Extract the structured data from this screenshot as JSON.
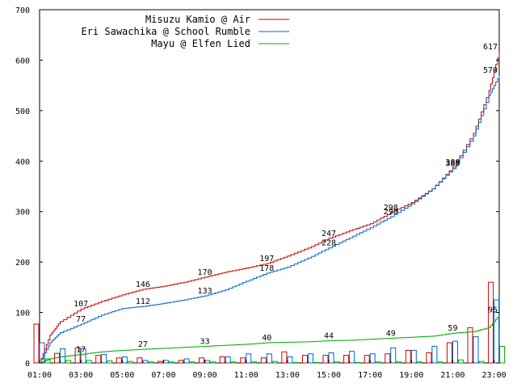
{
  "chart_data": {
    "type": "line",
    "title": "",
    "xlabel": "",
    "ylabel": "",
    "xlim": [
      1,
      23.25
    ],
    "ylim": [
      0,
      700
    ],
    "x_ticks": [
      "01:00",
      "03:00",
      "05:00",
      "07:00",
      "09:00",
      "11:00",
      "13:00",
      "15:00",
      "17:00",
      "19:00",
      "21:00",
      "23:00"
    ],
    "y_ticks": [
      0,
      100,
      200,
      300,
      400,
      500,
      600,
      700
    ],
    "grid": false,
    "legend_position": "top-right",
    "legend": [
      {
        "name": "Misuzu Kamio @ Air",
        "color": "#cc0000"
      },
      {
        "name": "Eri Sawachika @ School Rumble",
        "color": "#0066cc"
      },
      {
        "name": "Mayu @ Elfen Lied",
        "color": "#00aa00"
      }
    ],
    "series": [
      {
        "name": "Misuzu Kamio @ Air",
        "color": "#cc0000",
        "cumulative": [
          [
            1.0,
            0
          ],
          [
            1.5,
            55
          ],
          [
            2.0,
            82
          ],
          [
            3.0,
            107
          ],
          [
            4.0,
            122
          ],
          [
            5.0,
            135
          ],
          [
            6.0,
            146
          ],
          [
            7.0,
            152
          ],
          [
            8.0,
            160
          ],
          [
            9.0,
            170
          ],
          [
            10.0,
            180
          ],
          [
            11.0,
            188
          ],
          [
            12.0,
            197
          ],
          [
            13.0,
            212
          ],
          [
            14.0,
            228
          ],
          [
            15.0,
            247
          ],
          [
            16.0,
            262
          ],
          [
            17.0,
            276
          ],
          [
            18.0,
            298
          ],
          [
            19.0,
            318
          ],
          [
            20.0,
            345
          ],
          [
            21.0,
            388
          ],
          [
            22.0,
            455
          ],
          [
            22.75,
            540
          ],
          [
            23.25,
            617
          ]
        ],
        "hourly": [
          [
            1,
            77
          ],
          [
            2,
            19
          ],
          [
            3,
            30
          ],
          [
            4,
            15
          ],
          [
            5,
            10
          ],
          [
            6,
            10
          ],
          [
            7,
            3
          ],
          [
            8,
            5
          ],
          [
            9,
            10
          ],
          [
            10,
            12
          ],
          [
            11,
            10
          ],
          [
            12,
            10
          ],
          [
            13,
            22
          ],
          [
            14,
            15
          ],
          [
            15,
            15
          ],
          [
            16,
            15
          ],
          [
            17,
            15
          ],
          [
            18,
            18
          ],
          [
            19,
            25
          ],
          [
            20,
            20
          ],
          [
            21,
            40
          ],
          [
            22,
            70
          ],
          [
            23,
            160
          ]
        ]
      },
      {
        "name": "Eri Sawachika @ School Rumble",
        "color": "#0066cc",
        "cumulative": [
          [
            1.0,
            0
          ],
          [
            1.5,
            40
          ],
          [
            2.0,
            60
          ],
          [
            3.0,
            77
          ],
          [
            4.0,
            95
          ],
          [
            5.0,
            108
          ],
          [
            6.0,
            112
          ],
          [
            7.0,
            118
          ],
          [
            8.0,
            125
          ],
          [
            9.0,
            133
          ],
          [
            10.0,
            145
          ],
          [
            11.0,
            162
          ],
          [
            12.0,
            178
          ],
          [
            13.0,
            190
          ],
          [
            14.0,
            208
          ],
          [
            15.0,
            228
          ],
          [
            16.0,
            248
          ],
          [
            17.0,
            268
          ],
          [
            18.0,
            290
          ],
          [
            19.0,
            315
          ],
          [
            20.0,
            345
          ],
          [
            21.0,
            385
          ],
          [
            22.0,
            450
          ],
          [
            22.75,
            530
          ],
          [
            23.25,
            570
          ]
        ],
        "hourly": [
          [
            1,
            40
          ],
          [
            2,
            28
          ],
          [
            3,
            28
          ],
          [
            4,
            17
          ],
          [
            5,
            12
          ],
          [
            6,
            5
          ],
          [
            7,
            5
          ],
          [
            8,
            8
          ],
          [
            9,
            5
          ],
          [
            10,
            12
          ],
          [
            11,
            18
          ],
          [
            12,
            18
          ],
          [
            13,
            12
          ],
          [
            14,
            18
          ],
          [
            15,
            20
          ],
          [
            16,
            23
          ],
          [
            17,
            18
          ],
          [
            18,
            30
          ],
          [
            19,
            25
          ],
          [
            20,
            33
          ],
          [
            21,
            43
          ],
          [
            22,
            52
          ],
          [
            23,
            125
          ]
        ]
      },
      {
        "name": "Mayu @ Elfen Lied",
        "color": "#00aa00",
        "cumulative": [
          [
            1.0,
            0
          ],
          [
            1.5,
            8
          ],
          [
            2.0,
            12
          ],
          [
            3.0,
            17
          ],
          [
            4.0,
            22
          ],
          [
            5.0,
            25
          ],
          [
            6.0,
            27
          ],
          [
            7.0,
            29
          ],
          [
            8.0,
            31
          ],
          [
            9.0,
            33
          ],
          [
            10.0,
            35
          ],
          [
            11.0,
            37
          ],
          [
            12.0,
            40
          ],
          [
            13.0,
            41
          ],
          [
            14.0,
            42
          ],
          [
            15.0,
            44
          ],
          [
            16.0,
            45
          ],
          [
            17.0,
            47
          ],
          [
            18.0,
            49
          ],
          [
            19.0,
            51
          ],
          [
            20.0,
            53
          ],
          [
            21.0,
            59
          ],
          [
            22.0,
            62
          ],
          [
            22.75,
            70
          ],
          [
            23.25,
            95
          ]
        ],
        "hourly": [
          [
            1,
            8
          ],
          [
            2,
            5
          ],
          [
            3,
            5
          ],
          [
            4,
            4
          ],
          [
            5,
            3
          ],
          [
            6,
            2
          ],
          [
            7,
            2
          ],
          [
            8,
            2
          ],
          [
            9,
            2
          ],
          [
            10,
            2
          ],
          [
            11,
            2
          ],
          [
            12,
            3
          ],
          [
            13,
            1
          ],
          [
            14,
            1
          ],
          [
            15,
            2
          ],
          [
            16,
            1
          ],
          [
            17,
            2
          ],
          [
            18,
            2
          ],
          [
            19,
            2
          ],
          [
            20,
            2
          ],
          [
            21,
            6
          ],
          [
            22,
            3
          ],
          [
            23,
            33
          ]
        ]
      }
    ],
    "annotations": [
      {
        "x": 3.0,
        "y": 107,
        "text": "107",
        "series": 0
      },
      {
        "x": 6.0,
        "y": 146,
        "text": "146",
        "series": 0
      },
      {
        "x": 9.0,
        "y": 170,
        "text": "170",
        "series": 0
      },
      {
        "x": 12.0,
        "y": 197,
        "text": "197",
        "series": 0
      },
      {
        "x": 15.0,
        "y": 247,
        "text": "247",
        "series": 0
      },
      {
        "x": 18.0,
        "y": 298,
        "text": "298",
        "series": 0
      },
      {
        "x": 21.0,
        "y": 388,
        "text": "388",
        "series": 0
      },
      {
        "x": 23.25,
        "y": 617,
        "text": "617",
        "series": 0
      },
      {
        "x": 3.0,
        "y": 77,
        "text": "77",
        "series": 1
      },
      {
        "x": 6.0,
        "y": 112,
        "text": "112",
        "series": 1
      },
      {
        "x": 9.0,
        "y": 133,
        "text": "133",
        "series": 1
      },
      {
        "x": 12.0,
        "y": 178,
        "text": "178",
        "series": 1
      },
      {
        "x": 15.0,
        "y": 228,
        "text": "228",
        "series": 1
      },
      {
        "x": 18.0,
        "y": 290,
        "text": "290",
        "series": 1
      },
      {
        "x": 21.0,
        "y": 385,
        "text": "385",
        "series": 1
      },
      {
        "x": 23.25,
        "y": 570,
        "text": "570",
        "series": 1
      },
      {
        "x": 3.0,
        "y": 17,
        "text": "17",
        "series": 2
      },
      {
        "x": 6.0,
        "y": 27,
        "text": "27",
        "series": 2
      },
      {
        "x": 9.0,
        "y": 33,
        "text": "33",
        "series": 2
      },
      {
        "x": 12.0,
        "y": 40,
        "text": "40",
        "series": 2
      },
      {
        "x": 15.0,
        "y": 44,
        "text": "44",
        "series": 2
      },
      {
        "x": 18.0,
        "y": 49,
        "text": "49",
        "series": 2
      },
      {
        "x": 21.0,
        "y": 59,
        "text": "59",
        "series": 2
      },
      {
        "x": 23.25,
        "y": 95,
        "text": "95",
        "series": 2
      }
    ]
  }
}
